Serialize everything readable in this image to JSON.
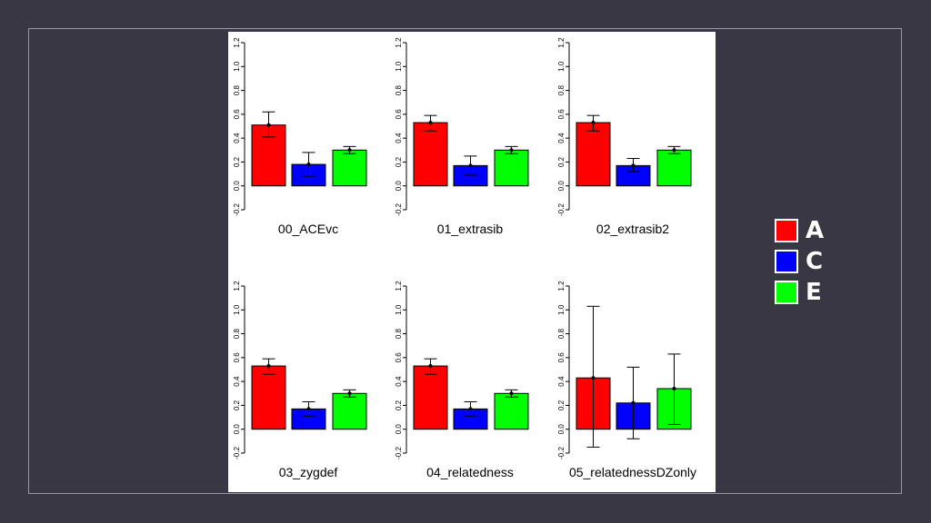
{
  "colors": {
    "A": "#ff0000",
    "C": "#0000ff",
    "E": "#00ff00"
  },
  "legend": [
    {
      "label": "A",
      "color": "#ff0000"
    },
    {
      "label": "C",
      "color": "#0000ff"
    },
    {
      "label": "E",
      "color": "#00ff00"
    }
  ],
  "chart_data": [
    {
      "type": "bar",
      "title": "00_ACEvc",
      "categories": [
        "A",
        "C",
        "E"
      ],
      "values": [
        0.51,
        0.18,
        0.3
      ],
      "ci_low": [
        0.41,
        0.08,
        0.27
      ],
      "ci_high": [
        0.62,
        0.28,
        0.33
      ],
      "ylim": [
        -0.2,
        1.2
      ],
      "yticks": [
        "-0.2",
        "0.0",
        "0.2",
        "0.4",
        "0.6",
        "0.8",
        "1.0",
        "1.2"
      ]
    },
    {
      "type": "bar",
      "title": "01_extrasib",
      "categories": [
        "A",
        "C",
        "E"
      ],
      "values": [
        0.53,
        0.17,
        0.3
      ],
      "ci_low": [
        0.46,
        0.09,
        0.27
      ],
      "ci_high": [
        0.59,
        0.25,
        0.33
      ],
      "ylim": [
        -0.2,
        1.2
      ],
      "yticks": [
        "-0.2",
        "0.0",
        "0.2",
        "0.4",
        "0.6",
        "0.8",
        "1.0",
        "1.2"
      ]
    },
    {
      "type": "bar",
      "title": "02_extrasib2",
      "categories": [
        "A",
        "C",
        "E"
      ],
      "values": [
        0.53,
        0.17,
        0.3
      ],
      "ci_low": [
        0.46,
        0.12,
        0.27
      ],
      "ci_high": [
        0.59,
        0.23,
        0.33
      ],
      "ylim": [
        -0.2,
        1.2
      ],
      "yticks": [
        "-0.2",
        "0.0",
        "0.2",
        "0.4",
        "0.6",
        "0.8",
        "1.0",
        "1.2"
      ]
    },
    {
      "type": "bar",
      "title": "03_zygdef",
      "categories": [
        "A",
        "C",
        "E"
      ],
      "values": [
        0.53,
        0.17,
        0.3
      ],
      "ci_low": [
        0.46,
        0.11,
        0.27
      ],
      "ci_high": [
        0.59,
        0.23,
        0.33
      ],
      "ylim": [
        -0.2,
        1.2
      ],
      "yticks": [
        "-0.2",
        "0.0",
        "0.2",
        "0.4",
        "0.6",
        "0.8",
        "1.0",
        "1.2"
      ]
    },
    {
      "type": "bar",
      "title": "04_relatedness",
      "categories": [
        "A",
        "C",
        "E"
      ],
      "values": [
        0.53,
        0.17,
        0.3
      ],
      "ci_low": [
        0.46,
        0.11,
        0.27
      ],
      "ci_high": [
        0.59,
        0.23,
        0.33
      ],
      "ylim": [
        -0.2,
        1.2
      ],
      "yticks": [
        "-0.2",
        "0.0",
        "0.2",
        "0.4",
        "0.6",
        "0.8",
        "1.0",
        "1.2"
      ]
    },
    {
      "type": "bar",
      "title": "05_relatednessDZonly",
      "categories": [
        "A",
        "C",
        "E"
      ],
      "values": [
        0.43,
        0.22,
        0.34
      ],
      "ci_low": [
        -0.15,
        -0.08,
        0.04
      ],
      "ci_high": [
        1.03,
        0.52,
        0.63
      ],
      "ylim": [
        -0.2,
        1.2
      ],
      "yticks": [
        "-0.2",
        "0.0",
        "0.2",
        "0.4",
        "0.6",
        "0.8",
        "1.0",
        "1.2"
      ]
    }
  ]
}
